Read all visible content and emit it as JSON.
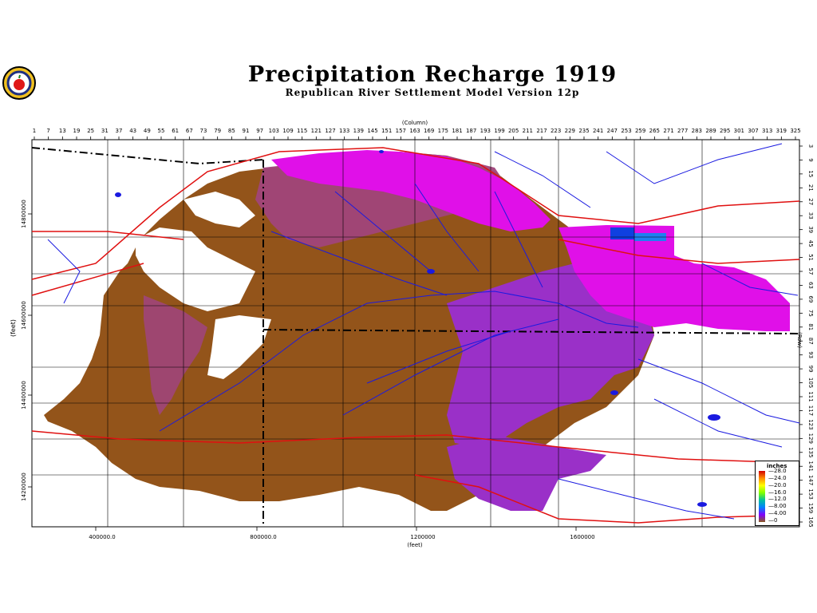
{
  "title": "Precipitation Recharge 1919",
  "subtitle": "Republican River Settlement Model Version 12p",
  "axes": {
    "column_label": "(Column)",
    "row_label": "(Row)",
    "y_unit": "(feet)",
    "x_unit": "(feet)",
    "column_ticks": [
      "1",
      "7",
      "13",
      "19",
      "25",
      "31",
      "37",
      "43",
      "49",
      "55",
      "61",
      "67",
      "73",
      "79",
      "85",
      "91",
      "97",
      "103",
      "109",
      "115",
      "121",
      "127",
      "133",
      "139",
      "145",
      "151",
      "157",
      "163",
      "169",
      "175",
      "181",
      "187",
      "193",
      "199",
      "205",
      "211",
      "217",
      "223",
      "229",
      "235",
      "241",
      "247",
      "253",
      "259",
      "265",
      "271",
      "277",
      "283",
      "289",
      "295",
      "301",
      "307",
      "313",
      "319",
      "325"
    ],
    "row_ticks": [
      "3",
      "9",
      "15",
      "21",
      "27",
      "33",
      "39",
      "45",
      "51",
      "57",
      "63",
      "69",
      "75",
      "81",
      "87",
      "93",
      "99",
      "105",
      "111",
      "117",
      "123",
      "129",
      "135",
      "141",
      "147",
      "153",
      "159",
      "165"
    ],
    "x_ticks": [
      "400000.0",
      "800000.0",
      "1200000",
      "1600000"
    ],
    "y_ticks": [
      "14800000",
      "14600000",
      "14400000",
      "14200000"
    ]
  },
  "legend": {
    "title": "inches",
    "labels": [
      "28.0",
      "24.0",
      "20.0",
      "16.0",
      "12.0",
      "8.00",
      "4.00",
      "0"
    ],
    "colors": [
      "#d00000",
      "#ff8c00",
      "#ffff00",
      "#80ff00",
      "#00c0a0",
      "#0080ff",
      "#8000ff",
      "#8a5a1e"
    ]
  },
  "colors": {
    "brown": "#93541a",
    "mauve": "#a0457a",
    "purple": "#9a30c8",
    "magenta": "#e010e8",
    "blue": "#1040e0",
    "roads": "#e01010",
    "boundary": "#000000",
    "rivers": "#1a1ae0"
  }
}
